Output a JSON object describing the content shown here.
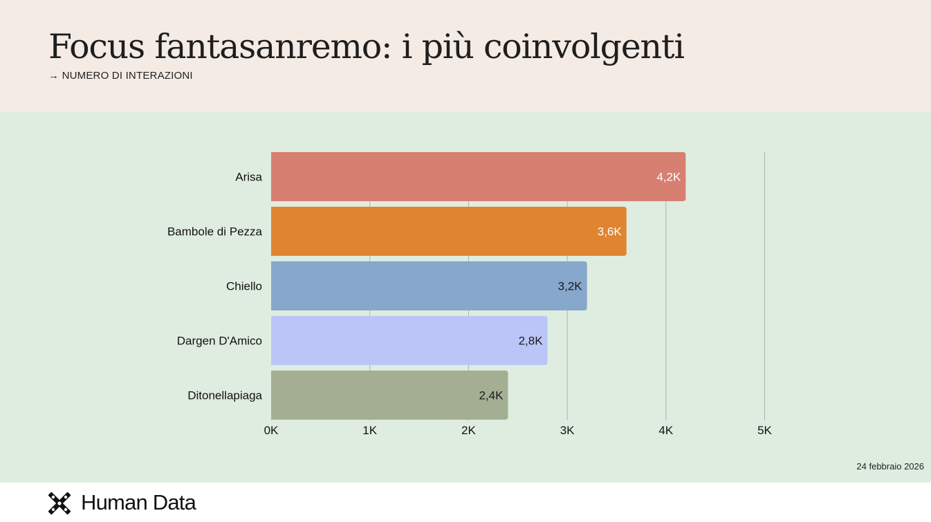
{
  "header": {
    "title": "Focus fantasanremo: i più coinvolgenti",
    "subtitle": "→ NUMERO DI INTERAZIONI"
  },
  "chart_data": {
    "type": "bar",
    "orientation": "horizontal",
    "categories": [
      "Arisa",
      "Bambole di Pezza",
      "Chiello",
      "Dargen D'Amico",
      "Ditonellapiaga"
    ],
    "values": [
      4.2,
      3.6,
      3.2,
      2.8,
      2.4
    ],
    "value_labels": [
      "4,2K",
      "3,6K",
      "3,2K",
      "2,8K",
      "2,4K"
    ],
    "colors": [
      "#d77f71",
      "#df8430",
      "#87a7cc",
      "#bcc5f8",
      "#a3ae92"
    ],
    "label_colors": [
      "#ffffff",
      "#ffffff",
      "#1a1a1a",
      "#1a1a1a",
      "#1a1a1a"
    ],
    "xticks": [
      0,
      1,
      2,
      3,
      4,
      5
    ],
    "xtick_labels": [
      "0K",
      "1K",
      "2K",
      "3K",
      "4K",
      "5K"
    ],
    "xlim": [
      0,
      5
    ],
    "grid": true,
    "title": "",
    "xlabel": "",
    "ylabel": ""
  },
  "date": "24 febbraio 2026",
  "footer": {
    "logo_text": "Human Data",
    "logo_icon": "human-data-logo-icon"
  },
  "colors": {
    "header_bg": "#f3ebe4",
    "chart_bg": "#dfede0",
    "grid": "#a9b5aa"
  }
}
